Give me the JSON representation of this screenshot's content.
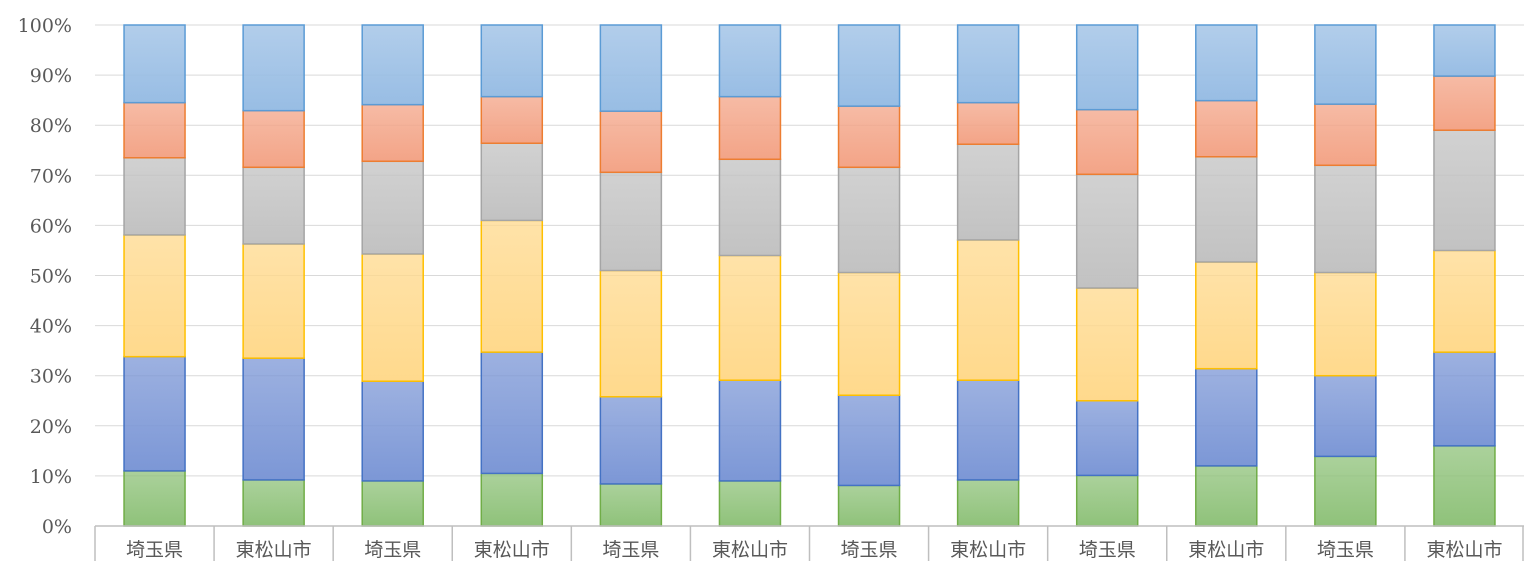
{
  "chart_data": {
    "type": "bar",
    "stacked": true,
    "percent": true,
    "title": "",
    "xlabel": "",
    "ylabel": "",
    "ylim": [
      0,
      100
    ],
    "yticks": [
      "0%",
      "10%",
      "20%",
      "30%",
      "40%",
      "50%",
      "60%",
      "70%",
      "80%",
      "90%",
      "100%"
    ],
    "grid": true,
    "legend": "none",
    "categories": [
      "埼玉県",
      "東松山市",
      "埼玉県",
      "東松山市",
      "埼玉県",
      "東松山市",
      "埼玉県",
      "東松山市",
      "埼玉県",
      "東松山市",
      "埼玉県",
      "東松山市"
    ],
    "series": [
      {
        "values": [
          11.0,
          9.2,
          9.0,
          10.5,
          8.4,
          9.0,
          8.1,
          9.2,
          10.1,
          12.0,
          13.9,
          16.0
        ],
        "color": "#8fc27a",
        "stroke": "#70ad47"
      },
      {
        "values": [
          22.8,
          24.3,
          19.9,
          24.2,
          17.4,
          20.1,
          18.0,
          19.9,
          14.9,
          19.4,
          16.1,
          18.7
        ],
        "color": "#7c97d6",
        "stroke": "#4472c4"
      },
      {
        "values": [
          24.3,
          22.8,
          25.4,
          26.3,
          25.2,
          24.9,
          24.5,
          28.0,
          22.5,
          21.3,
          20.6,
          20.3
        ],
        "color": "#ffd98c",
        "stroke": "#ffc000"
      },
      {
        "values": [
          15.4,
          15.3,
          18.5,
          15.4,
          19.6,
          19.2,
          21.0,
          19.1,
          22.7,
          21.0,
          21.4,
          24.0
        ],
        "color": "#c2c2c2",
        "stroke": "#a5a5a5"
      },
      {
        "values": [
          11.0,
          11.3,
          11.3,
          9.3,
          12.2,
          12.5,
          12.2,
          8.3,
          12.9,
          11.2,
          12.2,
          10.8
        ],
        "color": "#f3a487",
        "stroke": "#ed7d31"
      },
      {
        "values": [
          15.5,
          17.1,
          15.9,
          14.3,
          17.2,
          14.3,
          16.2,
          15.5,
          16.9,
          15.1,
          15.8,
          10.2
        ],
        "color": "#98bde4",
        "stroke": "#5b9bd5"
      }
    ]
  }
}
